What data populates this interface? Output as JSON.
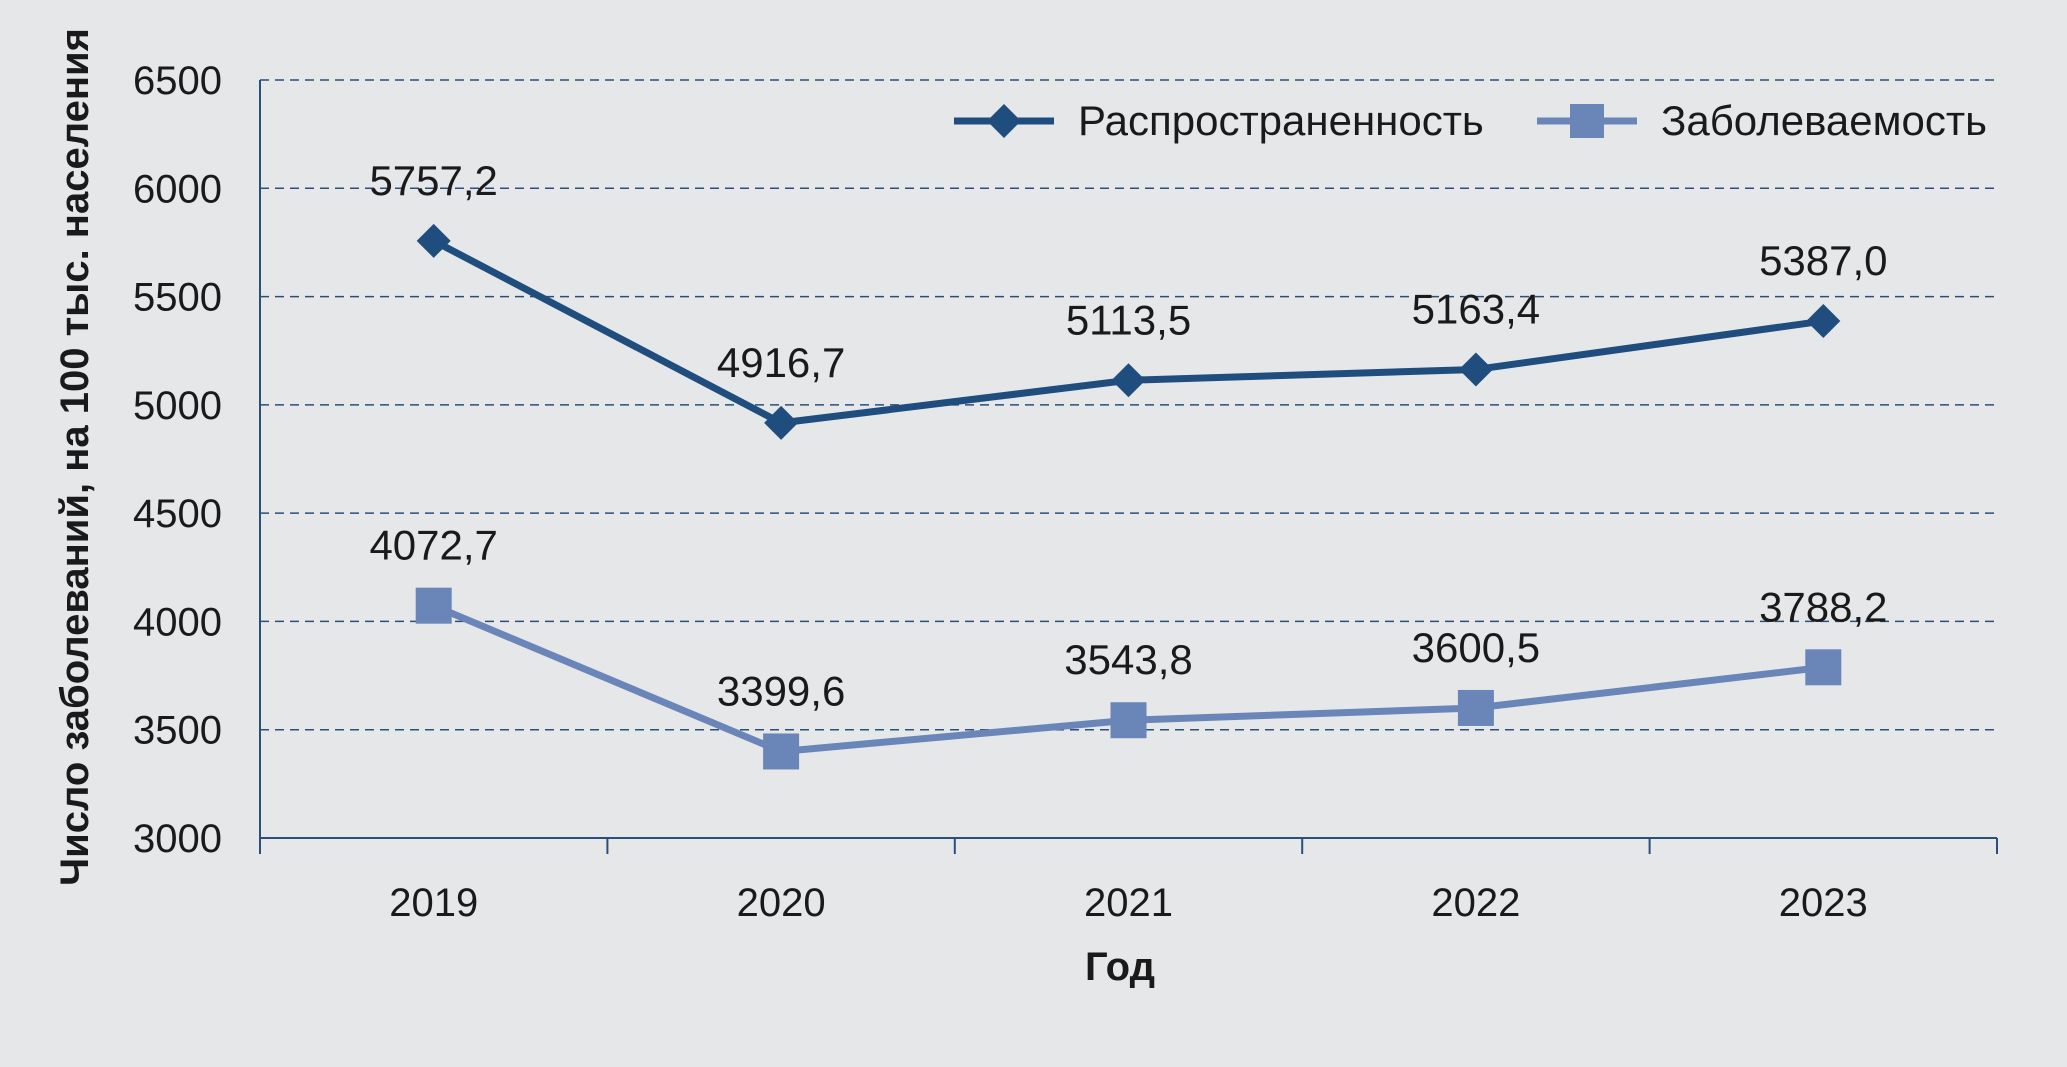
{
  "chart_data": {
    "type": "line",
    "title": "",
    "xlabel": "Год",
    "ylabel": "Число заболеваний, на 100 тыс. населения",
    "categories": [
      "2019",
      "2020",
      "2021",
      "2022",
      "2023"
    ],
    "ylim": [
      3000,
      6500
    ],
    "yticks": [
      3000,
      3500,
      4000,
      4500,
      5000,
      5500,
      6000,
      6500
    ],
    "grid": true,
    "legend_position": "top-right",
    "series": [
      {
        "name": "Распространенность",
        "values": [
          5757.2,
          4916.7,
          5113.5,
          5163.4,
          5387.0
        ],
        "labels": [
          "5757,2",
          "4916,7",
          "5113,5",
          "5163,4",
          "5387,0"
        ],
        "marker": "diamond",
        "color": "#1f4e7e"
      },
      {
        "name": "Заболеваемость",
        "values": [
          4072.7,
          3399.6,
          3543.8,
          3600.5,
          3788.2
        ],
        "labels": [
          "4072,7",
          "3399,6",
          "3543,8",
          "3600,5",
          "3788,2"
        ],
        "marker": "square",
        "color": "#6a86b8"
      }
    ]
  }
}
